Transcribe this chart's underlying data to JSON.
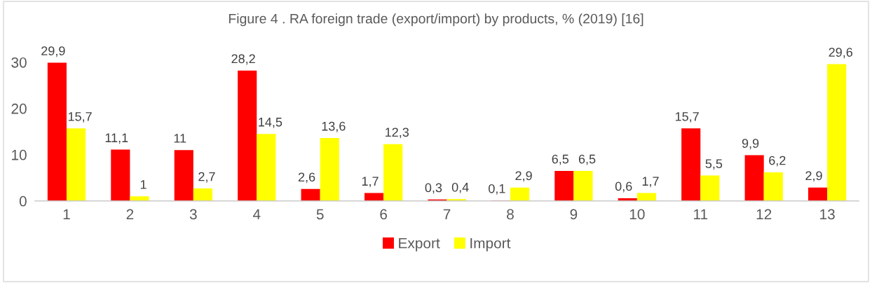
{
  "chart_data": {
    "type": "bar",
    "title": "Figure 4 . RA foreign trade (export/import) by products, % (2019) [16]",
    "categories": [
      "1",
      "2",
      "3",
      "4",
      "5",
      "6",
      "7",
      "8",
      "9",
      "10",
      "11",
      "12",
      "13"
    ],
    "series": [
      {
        "name": "Export",
        "color": "#ff0000",
        "values": [
          29.9,
          11.1,
          11,
          28.2,
          2.6,
          1.7,
          0.3,
          0.1,
          6.5,
          0.6,
          15.7,
          9.9,
          2.9
        ],
        "value_labels": [
          "29,9",
          "11,1",
          "11",
          "28,2",
          "2,6",
          "1,7",
          "0,3",
          "0,1",
          "6,5",
          "0,6",
          "15,7",
          "9,9",
          "2,9"
        ]
      },
      {
        "name": "Import",
        "color": "#ffff00",
        "values": [
          15.7,
          1,
          2.7,
          14.5,
          13.6,
          12.3,
          0.4,
          2.9,
          6.5,
          1.7,
          5.5,
          6.2,
          29.6
        ],
        "value_labels": [
          "15,7",
          "1",
          "2,7",
          "14,5",
          "13,6",
          "12,3",
          "0,4",
          "2,9",
          "6,5",
          "1,7",
          "5,5",
          "6,2",
          "29,6"
        ]
      }
    ],
    "ylim": [
      0,
      30
    ],
    "yticks": [
      0,
      10,
      20,
      30
    ],
    "grid": false,
    "legend": "bottom"
  }
}
